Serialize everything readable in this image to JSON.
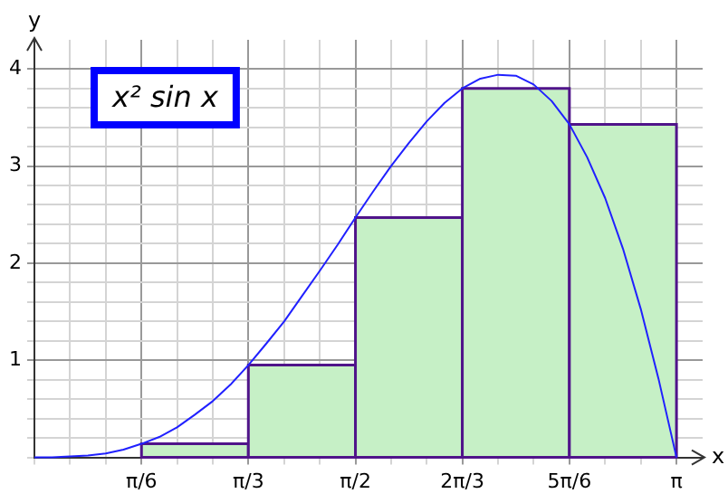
{
  "chart_data": {
    "type": "histogram",
    "bins": [
      0.524,
      1.047,
      1.571,
      2.094,
      2.618,
      3.142
    ],
    "values": [
      0.14,
      0.95,
      2.47,
      3.8,
      3.43
    ],
    "color": "#c6f0c6",
    "series": [
      {
        "type": "line",
        "color": "#2020ff",
        "x": [
          0,
          0.087,
          0.175,
          0.262,
          0.349,
          0.436,
          0.524,
          0.611,
          0.698,
          0.785,
          0.873,
          0.96,
          1.047,
          1.134,
          1.222,
          1.309,
          1.396,
          1.484,
          1.571,
          1.658,
          1.745,
          1.833,
          1.92,
          2.007,
          2.094,
          2.182,
          2.269,
          2.356,
          2.443,
          2.531,
          2.618,
          2.705,
          2.793,
          2.88,
          2.967,
          3.054,
          3.142
        ],
        "values": [
          0,
          0,
          0.01,
          0.02,
          0.04,
          0.08,
          0.14,
          0.21,
          0.31,
          0.44,
          0.58,
          0.75,
          0.95,
          1.17,
          1.4,
          1.66,
          1.92,
          2.19,
          2.47,
          2.74,
          3,
          3.24,
          3.46,
          3.65,
          3.8,
          3.9,
          3.94,
          3.93,
          3.84,
          3.67,
          3.43,
          3.09,
          2.67,
          2.15,
          1.53,
          0.81,
          0
        ]
      }
    ],
    "xlabel": "x",
    "ylabel": "y",
    "annotations": [
      "x² sin x"
    ],
    "xlim": [
      0,
      3.27
    ],
    "ylim": [
      0,
      4.3
    ],
    "xticks": [
      {
        "value": 0,
        "label": null
      },
      {
        "value": 0.175,
        "label": null
      },
      {
        "value": 0.349,
        "label": null
      },
      {
        "value": 0.524,
        "label": "π/6"
      },
      {
        "value": 0.698,
        "label": null
      },
      {
        "value": 0.873,
        "label": null
      },
      {
        "value": 1.047,
        "label": "π/3"
      },
      {
        "value": 1.222,
        "label": null
      },
      {
        "value": 1.396,
        "label": null
      },
      {
        "value": 1.571,
        "label": "π/2"
      },
      {
        "value": 1.745,
        "label": null
      },
      {
        "value": 1.92,
        "label": null
      },
      {
        "value": 2.094,
        "label": "2π/3"
      },
      {
        "value": 2.269,
        "label": null
      },
      {
        "value": 2.443,
        "label": null
      },
      {
        "value": 2.618,
        "label": "5π/6"
      },
      {
        "value": 2.793,
        "label": null
      },
      {
        "value": 2.967,
        "label": null
      },
      {
        "value": 3.142,
        "label": "π"
      }
    ],
    "yticks": [
      {
        "value": 0,
        "label": null
      },
      {
        "value": 0.2,
        "label": null
      },
      {
        "value": 0.4,
        "label": null
      },
      {
        "value": 0.6,
        "label": null
      },
      {
        "value": 0.8,
        "label": null
      },
      1,
      {
        "value": 1.2,
        "label": null
      },
      {
        "value": 1.4,
        "label": null
      },
      {
        "value": 1.6,
        "label": null
      },
      {
        "value": 1.8,
        "label": null
      },
      2,
      {
        "value": 2.2,
        "label": null
      },
      {
        "value": 2.4,
        "label": null
      },
      {
        "value": 2.6,
        "label": null
      },
      {
        "value": 2.8,
        "label": null
      },
      3,
      {
        "value": 3.2,
        "label": null
      },
      {
        "value": 3.4,
        "label": null
      },
      {
        "value": 3.6,
        "label": null
      },
      {
        "value": 3.8,
        "label": null
      },
      4
    ],
    "grid": true
  }
}
